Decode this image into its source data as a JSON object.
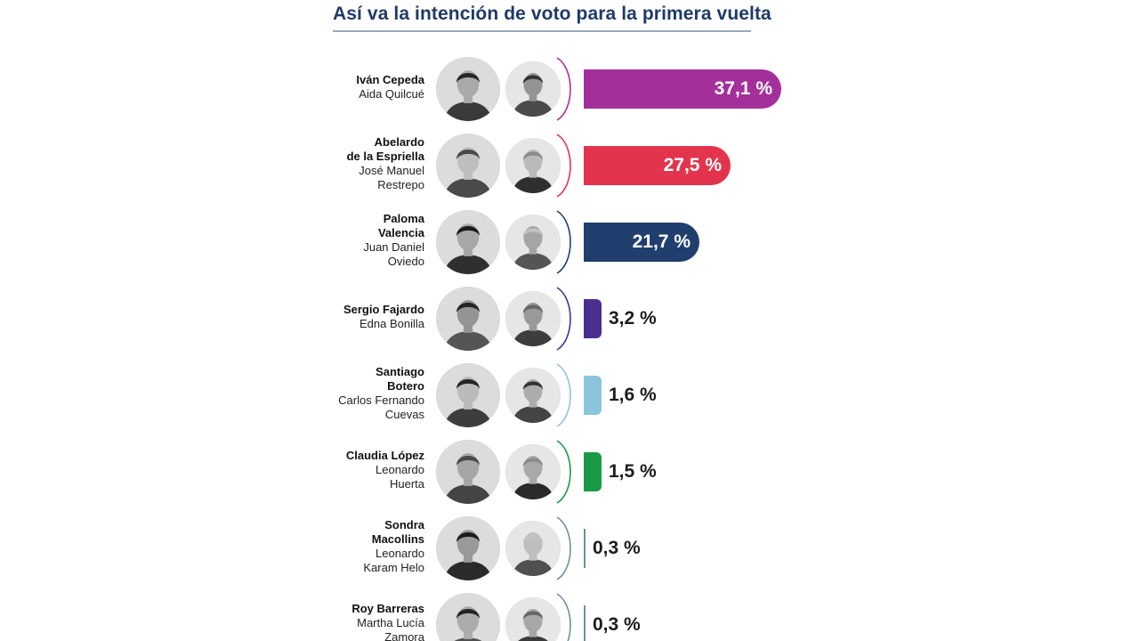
{
  "title": "Así va la intención de voto para la primera vuelta",
  "colors": {
    "title": "#1f3a68",
    "rule": "#9aa7bb"
  },
  "chart_data": {
    "type": "bar",
    "orientation": "horizontal",
    "title": "Así va la intención de voto para la primera vuelta",
    "unit": "%",
    "xlim": [
      0,
      37.1
    ],
    "grid": false,
    "legend": "none",
    "categories": [
      "Iván Cepeda / Aida Quilcué",
      "Abelardo de la Espriella / José Manuel Restrepo",
      "Paloma Valencia / Juan Daniel Oviedo",
      "Sergio Fajardo / Edna Bonilla",
      "Santiago Botero / Carlos Fernando Cuevas",
      "Claudia López / Leonardo Huerta",
      "Sondra Macollins / Leonardo Karam Helo",
      "Roy Barreras / Martha Lucía Zamora"
    ],
    "values": [
      37.1,
      27.5,
      21.7,
      3.2,
      1.6,
      1.5,
      0.3,
      0.3
    ],
    "rows": [
      {
        "president": [
          "Iván Cepeda"
        ],
        "vice": [
          "Aida Quilcué"
        ],
        "value": 37.1,
        "label": "37,1 %",
        "color": "#a3309a",
        "label_inside": true
      },
      {
        "president": [
          "Abelardo",
          "de la Espriella"
        ],
        "vice": [
          "José Manuel",
          "Restrepo"
        ],
        "value": 27.5,
        "label": "27,5 %",
        "color": "#e3344e",
        "label_inside": true
      },
      {
        "president": [
          "Paloma",
          "Valencia"
        ],
        "vice": [
          "Juan Daniel",
          "Oviedo"
        ],
        "value": 21.7,
        "label": "21,7 %",
        "color": "#213f6e",
        "label_inside": true
      },
      {
        "president": [
          "Sergio Fajardo"
        ],
        "vice": [
          "Edna Bonilla"
        ],
        "value": 3.2,
        "label": "3,2 %",
        "color": "#4b2f8e",
        "label_inside": false
      },
      {
        "president": [
          "Santiago",
          "Botero"
        ],
        "vice": [
          "Carlos Fernando",
          "Cuevas"
        ],
        "value": 1.6,
        "label": "1,6 %",
        "color": "#8cc4dc",
        "label_inside": false
      },
      {
        "president": [
          "Claudia López"
        ],
        "vice": [
          "Leonardo",
          "Huerta"
        ],
        "value": 1.5,
        "label": "1,5 %",
        "color": "#1a9a47",
        "label_inside": false
      },
      {
        "president": [
          "Sondra",
          "Macollins"
        ],
        "vice": [
          "Leonardo",
          "Karam Helo"
        ],
        "value": 0.3,
        "label": "0,3 %",
        "color": "#6e8fa8",
        "label_inside": false
      },
      {
        "president": [
          "Roy Barreras"
        ],
        "vice": [
          "Martha Lucía",
          "Zamora"
        ],
        "value": 0.3,
        "label": "0,3 %",
        "color": "#6e8fa8",
        "label_inside": false
      }
    ]
  }
}
